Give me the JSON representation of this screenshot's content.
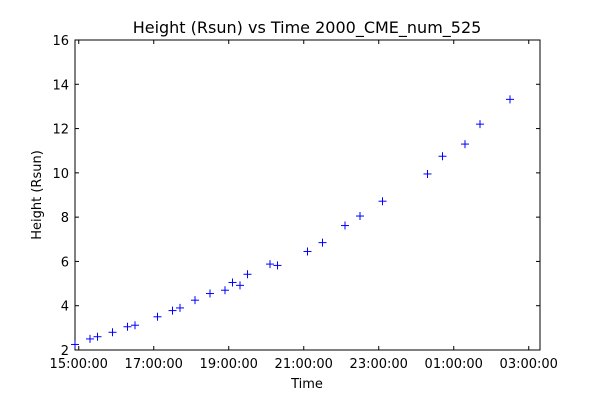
{
  "chart_data": {
    "type": "scatter",
    "title": "Height (Rsun) vs Time 2000_CME_num_525",
    "xlabel": "Time",
    "ylabel": "Height (Rsun)",
    "ylim": [
      2,
      16
    ],
    "xlim": [
      "14:54:00",
      "03:18:00"
    ],
    "x_ticks": [
      "15:00:00",
      "17:00:00",
      "19:00:00",
      "21:00:00",
      "23:00:00",
      "01:00:00",
      "03:00:00"
    ],
    "y_ticks": [
      "2",
      "4",
      "6",
      "8",
      "10",
      "12",
      "14",
      "16"
    ],
    "marker": "+",
    "marker_color": "#0000ff",
    "grid": false,
    "points": [
      {
        "x": "14:54:00",
        "y": 2.25
      },
      {
        "x": "15:18:00",
        "y": 2.5
      },
      {
        "x": "15:30:00",
        "y": 2.6
      },
      {
        "x": "15:54:00",
        "y": 2.8
      },
      {
        "x": "16:18:00",
        "y": 3.05
      },
      {
        "x": "16:30:00",
        "y": 3.12
      },
      {
        "x": "17:06:00",
        "y": 3.5
      },
      {
        "x": "17:30:00",
        "y": 3.78
      },
      {
        "x": "17:42:00",
        "y": 3.9
      },
      {
        "x": "18:06:00",
        "y": 4.25
      },
      {
        "x": "18:30:00",
        "y": 4.55
      },
      {
        "x": "18:54:00",
        "y": 4.7
      },
      {
        "x": "19:06:00",
        "y": 5.05
      },
      {
        "x": "19:18:00",
        "y": 4.92
      },
      {
        "x": "19:30:00",
        "y": 5.42
      },
      {
        "x": "20:06:00",
        "y": 5.88
      },
      {
        "x": "20:18:00",
        "y": 5.82
      },
      {
        "x": "21:06:00",
        "y": 6.45
      },
      {
        "x": "21:30:00",
        "y": 6.85
      },
      {
        "x": "22:06:00",
        "y": 7.62
      },
      {
        "x": "22:30:00",
        "y": 8.05
      },
      {
        "x": "23:06:00",
        "y": 8.72
      },
      {
        "x": "00:18:00",
        "y": 9.95
      },
      {
        "x": "00:42:00",
        "y": 10.75
      },
      {
        "x": "01:18:00",
        "y": 11.3
      },
      {
        "x": "01:42:00",
        "y": 12.2
      },
      {
        "x": "02:30:00",
        "y": 13.32
      }
    ]
  }
}
